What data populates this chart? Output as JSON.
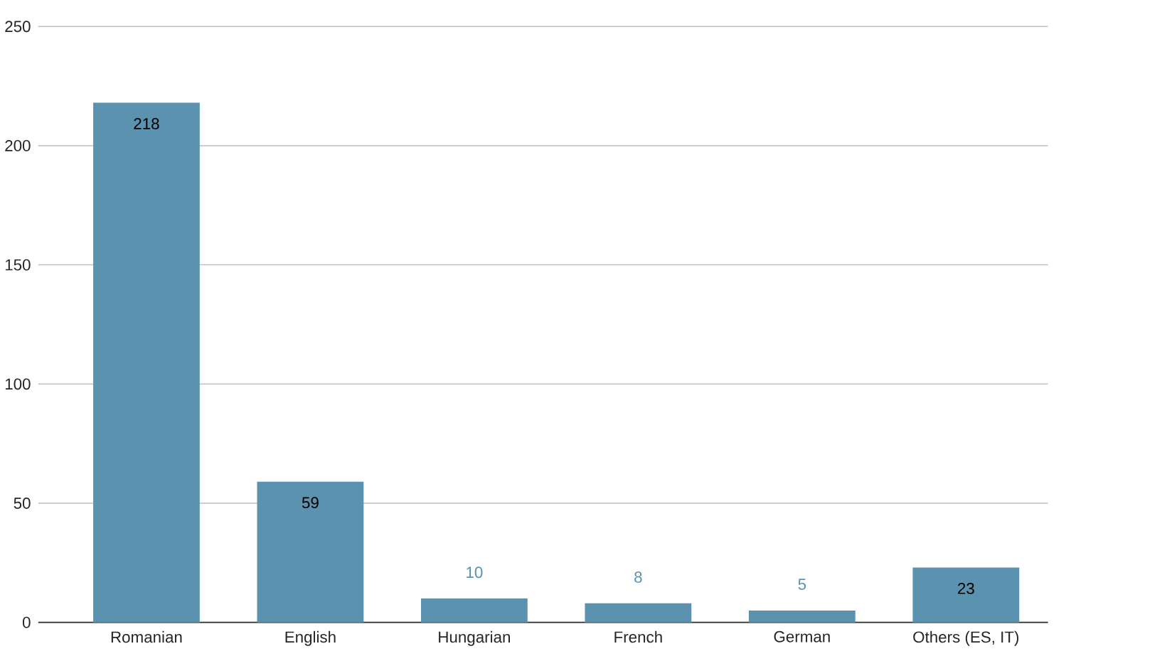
{
  "chart_data": {
    "type": "bar",
    "categories": [
      "Romanian",
      "English",
      "Hungarian",
      "French",
      "German",
      "Others (ES, IT)"
    ],
    "values": [
      218,
      59,
      10,
      8,
      5,
      23
    ],
    "color": "#5b92b0",
    "ylim": [
      0,
      250
    ],
    "yticks": [
      0,
      50,
      100,
      150,
      200,
      250
    ],
    "grid": "y",
    "data_labels": true
  }
}
